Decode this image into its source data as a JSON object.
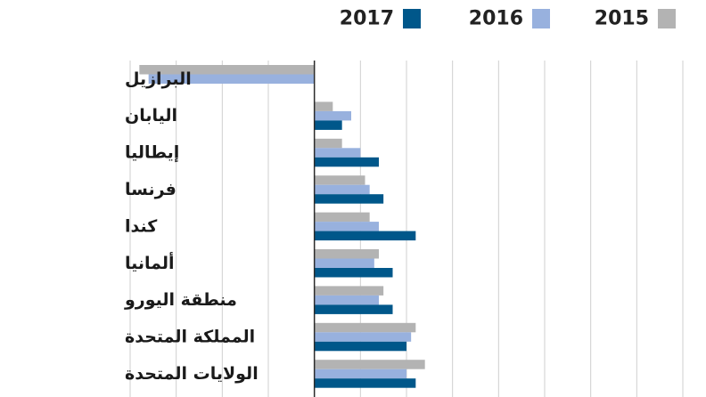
{
  "chart_data": {
    "type": "bar",
    "orientation": "horizontal",
    "title": "",
    "xlabel": "",
    "ylabel": "",
    "grid": true,
    "legend_position": "top-right",
    "xlim": [
      -4,
      8
    ],
    "categories": [
      "البرازيل",
      "اليابان",
      "إيطاليا",
      "فرنسا",
      "كندا",
      "ألمانيا",
      "منطقة اليورو",
      "المملكة المتحدة",
      "الولايات المتحدة"
    ],
    "series": [
      {
        "name": "2015",
        "color": "#b3b3b3",
        "values": [
          -3.8,
          0.4,
          0.6,
          1.1,
          1.2,
          1.4,
          1.5,
          2.2,
          2.4
        ]
      },
      {
        "name": "2016",
        "color": "#98b1de",
        "values": [
          -3.6,
          0.8,
          1.0,
          1.2,
          1.4,
          1.3,
          1.4,
          2.1,
          2.0
        ]
      },
      {
        "name": "2017",
        "color": "#00578a",
        "values": [
          null,
          0.6,
          1.4,
          1.5,
          2.2,
          1.7,
          1.7,
          2.0,
          2.2
        ]
      }
    ]
  }
}
